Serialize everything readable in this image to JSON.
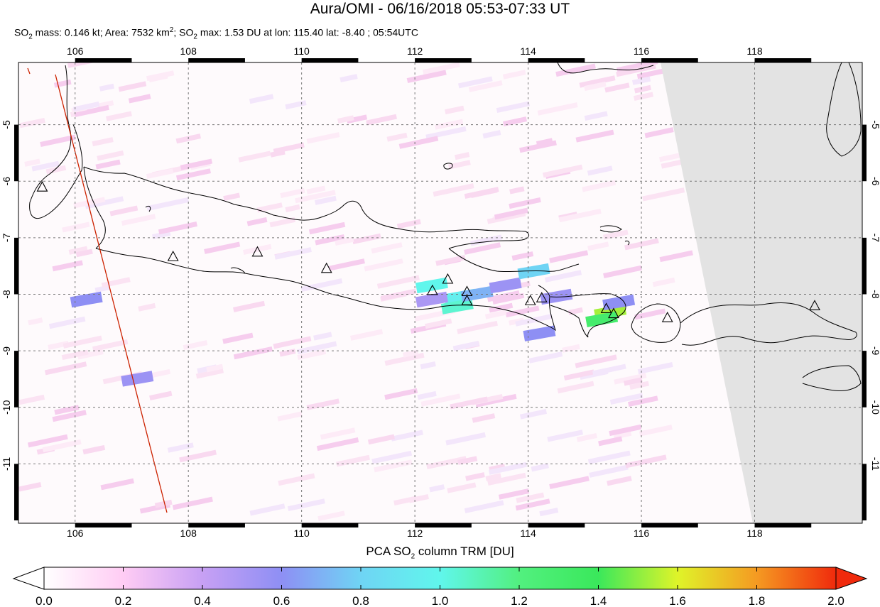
{
  "title": "Aura/OMI - 06/16/2018 05:53-07:33 UT",
  "subtitle": {
    "p1": "SO",
    "s1": "2",
    "p2": " mass: 0.146 kt; Area: 7532 km",
    "sup": "2",
    "p3": "; SO",
    "s2": "2",
    "p4": " max: 1.53 DU at lon: 115.40 lat: -8.40 ; 05:54UTC"
  },
  "map": {
    "lon_range": [
      105,
      119.9
    ],
    "lat_range": [
      -12.05,
      -3.9
    ],
    "lon_ticks": [
      "106",
      "108",
      "110",
      "112",
      "114",
      "116",
      "118"
    ],
    "lat_ticks": [
      "-5",
      "-6",
      "-7",
      "-8",
      "-9",
      "-10",
      "-11"
    ],
    "no_data_color": "#e3e3e3",
    "orbit_line_color": "#cc2200",
    "volcano_icon": "triangle-icon",
    "volcanoes": [
      {
        "lon": 105.42,
        "lat": -6.1
      },
      {
        "lon": 107.73,
        "lat": -7.33
      },
      {
        "lon": 109.22,
        "lat": -7.25
      },
      {
        "lon": 110.44,
        "lat": -7.54
      },
      {
        "lon": 112.31,
        "lat": -7.93
      },
      {
        "lon": 112.58,
        "lat": -7.73
      },
      {
        "lon": 112.92,
        "lat": -7.95
      },
      {
        "lon": 112.92,
        "lat": -8.11
      },
      {
        "lon": 114.04,
        "lat": -8.11
      },
      {
        "lon": 114.24,
        "lat": -8.06
      },
      {
        "lon": 115.38,
        "lat": -8.25
      },
      {
        "lon": 115.51,
        "lat": -8.34
      },
      {
        "lon": 116.46,
        "lat": -8.41
      },
      {
        "lon": 119.06,
        "lat": -8.2
      }
    ],
    "so2_pixels": [
      {
        "lon": 112.3,
        "lat": -7.85,
        "du": 1.0
      },
      {
        "lon": 112.8,
        "lat": -8.05,
        "du": 0.95
      },
      {
        "lon": 112.75,
        "lat": -8.22,
        "du": 1.05
      },
      {
        "lon": 113.1,
        "lat": -8.0,
        "du": 0.7
      },
      {
        "lon": 113.6,
        "lat": -7.85,
        "du": 0.55
      },
      {
        "lon": 114.1,
        "lat": -7.6,
        "du": 0.8
      },
      {
        "lon": 114.5,
        "lat": -8.05,
        "du": 0.55
      },
      {
        "lon": 115.45,
        "lat": -8.32,
        "du": 1.53
      },
      {
        "lon": 115.3,
        "lat": -8.45,
        "du": 1.3
      },
      {
        "lon": 115.6,
        "lat": -8.15,
        "du": 0.6
      },
      {
        "lon": 114.2,
        "lat": -8.7,
        "du": 0.6
      },
      {
        "lon": 106.2,
        "lat": -8.1,
        "du": 0.6
      },
      {
        "lon": 107.1,
        "lat": -9.5,
        "du": 0.55
      },
      {
        "lon": 112.3,
        "lat": -8.1,
        "du": 0.5
      }
    ]
  },
  "colorbar": {
    "title_pre": "PCA SO",
    "title_sub": "2",
    "title_post": " column TRM [DU]",
    "range": [
      0.0,
      2.0
    ],
    "labels": [
      "0.0",
      "0.2",
      "0.4",
      "0.6",
      "0.8",
      "1.0",
      "1.2",
      "1.4",
      "1.6",
      "1.8",
      "2.0"
    ],
    "stops": [
      "#ffffff",
      "#ffccf4",
      "#c7a0f4",
      "#8e8ff4",
      "#6fd4f4",
      "#60f6ec",
      "#52f07f",
      "#3ae85b",
      "#dff429",
      "#f59a22",
      "#f02a0c"
    ]
  }
}
